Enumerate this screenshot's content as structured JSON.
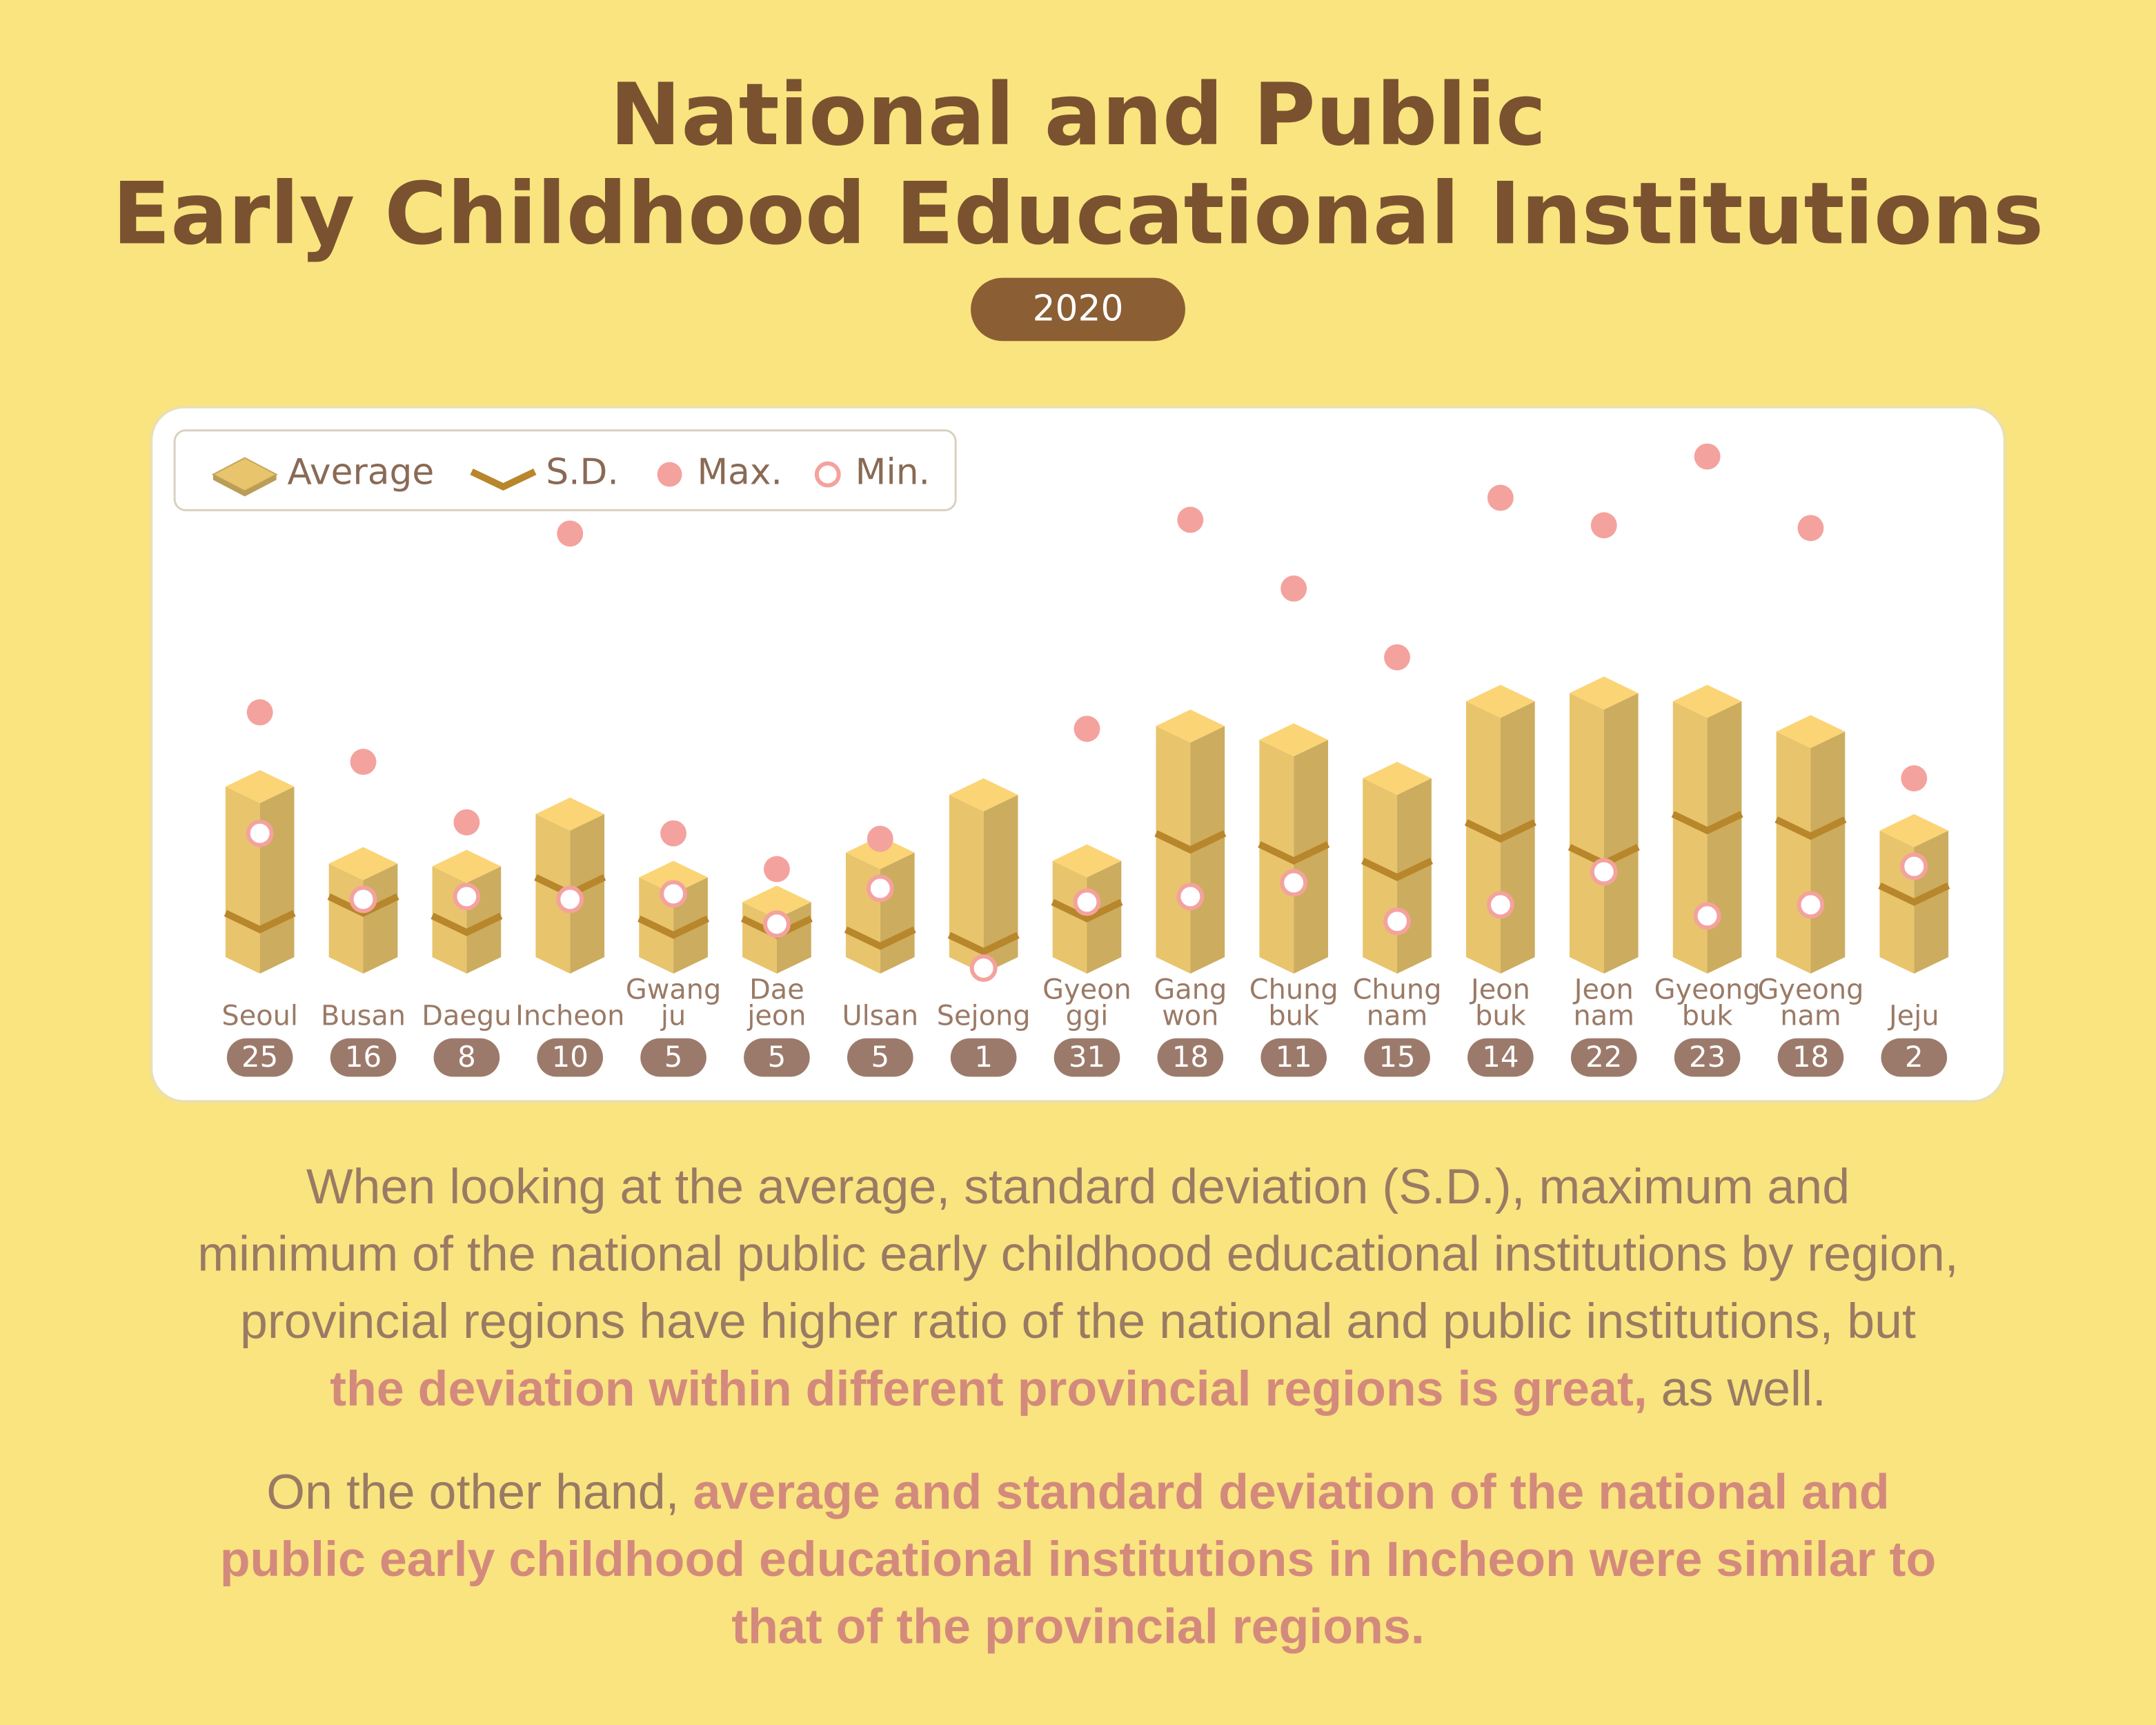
{
  "chart_data": {
    "type": "prism-bar",
    "title": [
      "National and Public",
      "Early Childhood Educational Institutions"
    ],
    "subtitle": "2020",
    "categories": [
      [
        "Seoul"
      ],
      [
        "Busan"
      ],
      [
        "Daegu"
      ],
      [
        "Incheon"
      ],
      [
        "Gwang",
        "ju"
      ],
      [
        "Dae",
        "jeon"
      ],
      [
        "Ulsan"
      ],
      [
        "Sejong"
      ],
      [
        "Gyeon",
        "ggi"
      ],
      [
        "Gang",
        "won"
      ],
      [
        "Chung",
        "buk"
      ],
      [
        "Chung",
        "nam"
      ],
      [
        "Jeon",
        "buk"
      ],
      [
        "Jeon",
        "nam"
      ],
      [
        "Gyeong",
        "buk"
      ],
      [
        "Gyeong",
        "nam"
      ],
      [
        "Jeju"
      ]
    ],
    "counts": [
      25,
      16,
      8,
      10,
      5,
      5,
      5,
      1,
      31,
      18,
      11,
      15,
      14,
      22,
      23,
      18,
      2
    ],
    "ylim": [
      0,
      100
    ],
    "series": [
      {
        "name": "Average",
        "color": "#e8c46c",
        "values": [
          31,
          17,
          16.5,
          26,
          14.5,
          10,
          19,
          29.5,
          17.5,
          42,
          39.5,
          32.5,
          46.5,
          48,
          46.5,
          41,
          23
        ]
      },
      {
        "name": "S.D.",
        "color": "#b8862b",
        "values": [
          8,
          11,
          7.5,
          14.5,
          7,
          7,
          5,
          4,
          10,
          22.5,
          20.5,
          17.5,
          24.5,
          20,
          26,
          25,
          13
        ]
      },
      {
        "name": "Max.",
        "color": "#f4a29e",
        "values": [
          47.5,
          38.5,
          27.5,
          80,
          25.5,
          19,
          24.5,
          null,
          44.5,
          82.5,
          70,
          57.5,
          86.5,
          81.5,
          94,
          81,
          35.5
        ]
      },
      {
        "name": "Min.",
        "color": "#f4a29e",
        "values": [
          25.5,
          13.5,
          14,
          13.5,
          14.5,
          9,
          15.5,
          1,
          13,
          14,
          16.5,
          9.5,
          12.5,
          18.5,
          10.5,
          12.5,
          19.5
        ]
      }
    ]
  },
  "notes": [
    [
      [
        {
          "text": "When looking at the average, standard deviation (S.D.), maximum and",
          "highlight": false
        }
      ],
      [
        {
          "text": "minimum of the national public early childhood educational institutions by region,",
          "highlight": false
        }
      ],
      [
        {
          "text": "provincial regions have higher ratio of the national and public institutions, but",
          "highlight": false
        }
      ],
      [
        {
          "text": "the deviation within different provincial regions is great,",
          "highlight": true
        },
        {
          "text": " as well.",
          "highlight": false
        }
      ]
    ],
    [
      [
        {
          "text": "On the other hand, ",
          "highlight": false
        },
        {
          "text": "average and standard deviation of the national and",
          "highlight": true
        }
      ],
      [
        {
          "text": "public early childhood educational institutions in Incheon were similar to",
          "highlight": true
        }
      ],
      [
        {
          "text": "that of the provincial regions.",
          "highlight": true
        }
      ]
    ]
  ]
}
